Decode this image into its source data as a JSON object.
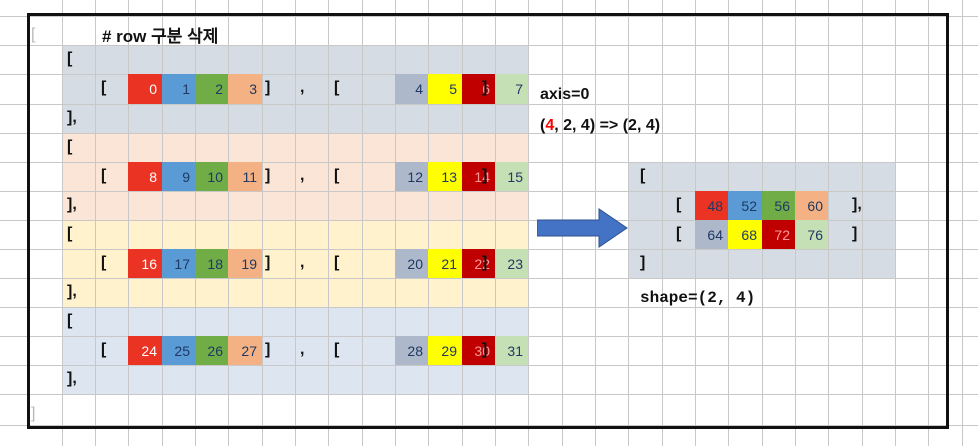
{
  "heading": "# row 구분 삭제",
  "open_bracket": "[",
  "close_bracket": "]",
  "close_bracket_comma": "],",
  "bracket_pair_close": "]",
  "comma": ",",
  "left_groups": [
    {
      "rows": [
        {
          "values": [
            "0",
            "1",
            "2",
            "3"
          ],
          "colors": [
            "#ea3323",
            "#5b9bd5",
            "#70ad47",
            "#f4b183"
          ]
        },
        {
          "values": [
            "4",
            "5",
            "6",
            "7"
          ],
          "colors": [
            "#adb9ca",
            "#ffff00",
            "#c00000",
            "#c5e0b4"
          ]
        }
      ]
    },
    {
      "rows": [
        {
          "values": [
            "8",
            "9",
            "10",
            "11"
          ],
          "colors": [
            "#ea3323",
            "#5b9bd5",
            "#70ad47",
            "#f4b183"
          ]
        },
        {
          "values": [
            "12",
            "13",
            "14",
            "15"
          ],
          "colors": [
            "#adb9ca",
            "#ffff00",
            "#c00000",
            "#c5e0b4"
          ]
        }
      ]
    },
    {
      "rows": [
        {
          "values": [
            "16",
            "17",
            "18",
            "19"
          ],
          "colors": [
            "#ea3323",
            "#5b9bd5",
            "#70ad47",
            "#f4b183"
          ]
        },
        {
          "values": [
            "20",
            "21",
            "22",
            "23"
          ],
          "colors": [
            "#adb9ca",
            "#ffff00",
            "#c00000",
            "#c5e0b4"
          ]
        }
      ]
    },
    {
      "rows": [
        {
          "values": [
            "24",
            "25",
            "26",
            "27"
          ],
          "colors": [
            "#ea3323",
            "#5b9bd5",
            "#70ad47",
            "#f4b183"
          ]
        },
        {
          "values": [
            "28",
            "29",
            "30",
            "31"
          ],
          "colors": [
            "#adb9ca",
            "#ffff00",
            "#c00000",
            "#c5e0b4"
          ]
        }
      ]
    }
  ],
  "group_band_colors": [
    "#d6dce4",
    "#fbe5d6",
    "#fff2cc",
    "#dde6f0"
  ],
  "axis_label": "axis=0",
  "shape_change": {
    "highlight": "4",
    "rest": ", 2, 4) => (2, 4)",
    "open": "("
  },
  "result": {
    "rows": [
      {
        "values": [
          "48",
          "52",
          "56",
          "60"
        ],
        "colors": [
          "#ea3323",
          "#5b9bd5",
          "#70ad47",
          "#f4b183"
        ],
        "close": "],"
      },
      {
        "values": [
          "64",
          "68",
          "72",
          "76"
        ],
        "colors": [
          "#adb9ca",
          "#ffff00",
          "#c00000",
          "#c5e0b4"
        ],
        "close": "]"
      }
    ],
    "band_color": "#d6dce4"
  },
  "shape_label": "shape=(2, 4)",
  "arrow_color": "#4472c4",
  "highlight_color": "#ff0000",
  "outer_open": "[",
  "outer_close": "]"
}
